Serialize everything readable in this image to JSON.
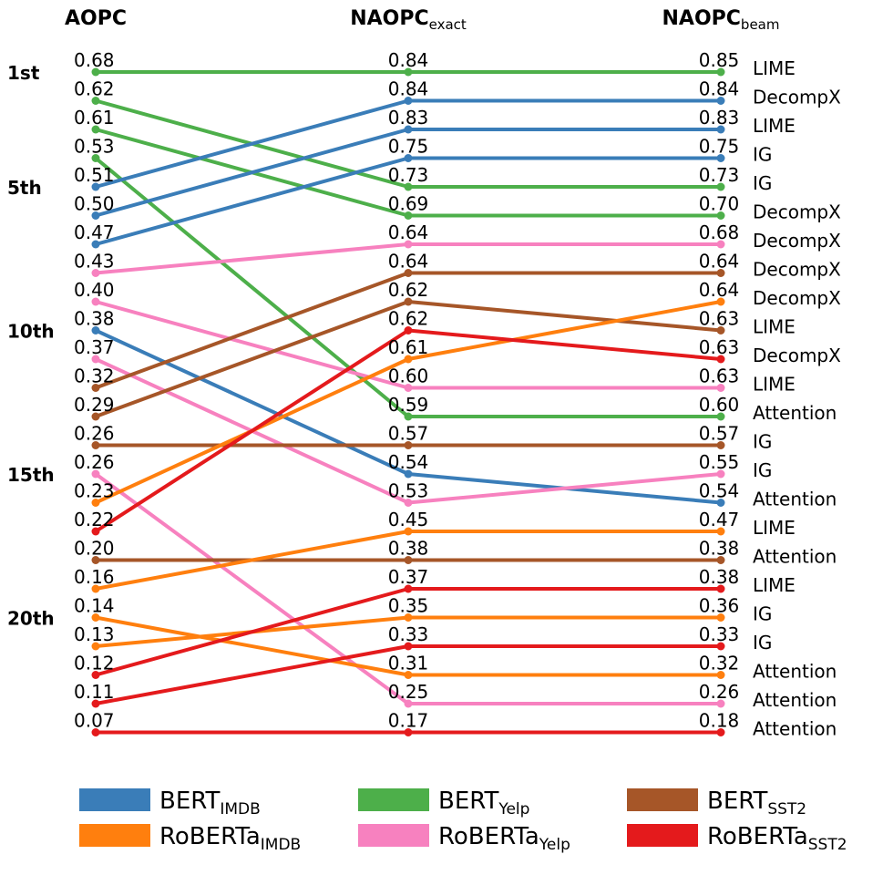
{
  "chart_data": {
    "type": "bump-slope",
    "columns": [
      {
        "main": "AOPC",
        "sub": ""
      },
      {
        "main": "NAOPC",
        "sub": "exact"
      },
      {
        "main": "NAOPC",
        "sub": "beam"
      }
    ],
    "rank_labels": [
      {
        "label": "1st",
        "rank": 1
      },
      {
        "label": "5th",
        "rank": 5
      },
      {
        "label": "10th",
        "rank": 10
      },
      {
        "label": "15th",
        "rank": 15
      },
      {
        "label": "20th",
        "rank": 20
      }
    ],
    "col0_values": [
      "0.68",
      "0.62",
      "0.61",
      "0.53",
      "0.51",
      "0.50",
      "0.47",
      "0.43",
      "0.40",
      "0.38",
      "0.37",
      "0.32",
      "0.29",
      "0.26",
      "0.26",
      "0.23",
      "0.22",
      "0.20",
      "0.16",
      "0.14",
      "0.13",
      "0.12",
      "0.11",
      "0.07"
    ],
    "col1_values": [
      "0.84",
      "0.84",
      "0.83",
      "0.75",
      "0.73",
      "0.69",
      "0.64",
      "0.64",
      "0.62",
      "0.62",
      "0.61",
      "0.60",
      "0.59",
      "0.57",
      "0.54",
      "0.53",
      "0.45",
      "0.38",
      "0.37",
      "0.35",
      "0.33",
      "0.31",
      "0.25",
      "0.17"
    ],
    "col2_values": [
      "0.85",
      "0.84",
      "0.83",
      "0.75",
      "0.73",
      "0.70",
      "0.68",
      "0.64",
      "0.64",
      "0.63",
      "0.63",
      "0.63",
      "0.60",
      "0.57",
      "0.55",
      "0.54",
      "0.47",
      "0.38",
      "0.38",
      "0.36",
      "0.33",
      "0.32",
      "0.26",
      "0.18"
    ],
    "methods": [
      "LIME",
      "DecompX",
      "LIME",
      "IG",
      "IG",
      "DecompX",
      "DecompX",
      "DecompX",
      "DecompX",
      "LIME",
      "DecompX",
      "LIME",
      "Attention",
      "IG",
      "IG",
      "Attention",
      "LIME",
      "Attention",
      "LIME",
      "IG",
      "IG",
      "Attention",
      "Attention",
      "Attention"
    ],
    "series_colors": {
      "BERT_IMDB": "#3a7db8",
      "RoBERTa_IMDB": "#ff7f0e",
      "BERT_Yelp": "#4daf4a",
      "RoBERTa_Yelp": "#f781bf",
      "BERT_SST2": "#a65628",
      "RoBERTa_SST2": "#e41a1c"
    },
    "lines": [
      {
        "series": "BERT_Yelp",
        "ranks": [
          1,
          1,
          1
        ]
      },
      {
        "series": "BERT_Yelp",
        "ranks": [
          2,
          5,
          5
        ]
      },
      {
        "series": "BERT_Yelp",
        "ranks": [
          3,
          6,
          6
        ]
      },
      {
        "series": "BERT_Yelp",
        "ranks": [
          4,
          13,
          13
        ]
      },
      {
        "series": "BERT_IMDB",
        "ranks": [
          5,
          2,
          2
        ]
      },
      {
        "series": "BERT_IMDB",
        "ranks": [
          6,
          3,
          3
        ]
      },
      {
        "series": "BERT_IMDB",
        "ranks": [
          7,
          4,
          4
        ]
      },
      {
        "series": "RoBERTa_Yelp",
        "ranks": [
          8,
          7,
          7
        ]
      },
      {
        "series": "RoBERTa_Yelp",
        "ranks": [
          9,
          12,
          12
        ]
      },
      {
        "series": "BERT_IMDB",
        "ranks": [
          10,
          15,
          16
        ]
      },
      {
        "series": "RoBERTa_Yelp",
        "ranks": [
          11,
          16,
          15
        ]
      },
      {
        "series": "BERT_SST2",
        "ranks": [
          12,
          8,
          8
        ]
      },
      {
        "series": "BERT_SST2",
        "ranks": [
          13,
          9,
          10
        ]
      },
      {
        "series": "BERT_SST2",
        "ranks": [
          14,
          14,
          14
        ]
      },
      {
        "series": "RoBERTa_Yelp",
        "ranks": [
          15,
          23,
          23
        ]
      },
      {
        "series": "RoBERTa_IMDB",
        "ranks": [
          16,
          11,
          9
        ]
      },
      {
        "series": "RoBERTa_SST2",
        "ranks": [
          17,
          10,
          11
        ]
      },
      {
        "series": "BERT_SST2",
        "ranks": [
          18,
          18,
          18
        ]
      },
      {
        "series": "RoBERTa_IMDB",
        "ranks": [
          19,
          17,
          17
        ]
      },
      {
        "series": "RoBERTa_IMDB",
        "ranks": [
          20,
          22,
          22
        ]
      },
      {
        "series": "RoBERTa_IMDB",
        "ranks": [
          21,
          20,
          20
        ]
      },
      {
        "series": "RoBERTa_SST2",
        "ranks": [
          22,
          19,
          19
        ]
      },
      {
        "series": "RoBERTa_SST2",
        "ranks": [
          23,
          21,
          21
        ]
      },
      {
        "series": "RoBERTa_SST2",
        "ranks": [
          24,
          24,
          24
        ]
      }
    ],
    "legend": [
      {
        "key": "BERT_IMDB",
        "main": "BERT",
        "sub": "IMDB"
      },
      {
        "key": "BERT_Yelp",
        "main": "BERT",
        "sub": "Yelp"
      },
      {
        "key": "BERT_SST2",
        "main": "BERT",
        "sub": "SST2"
      },
      {
        "key": "RoBERTa_IMDB",
        "main": "RoBERTa",
        "sub": "IMDB"
      },
      {
        "key": "RoBERTa_Yelp",
        "main": "RoBERTa",
        "sub": "Yelp"
      },
      {
        "key": "RoBERTa_SST2",
        "main": "RoBERTa",
        "sub": "SST2"
      }
    ]
  }
}
